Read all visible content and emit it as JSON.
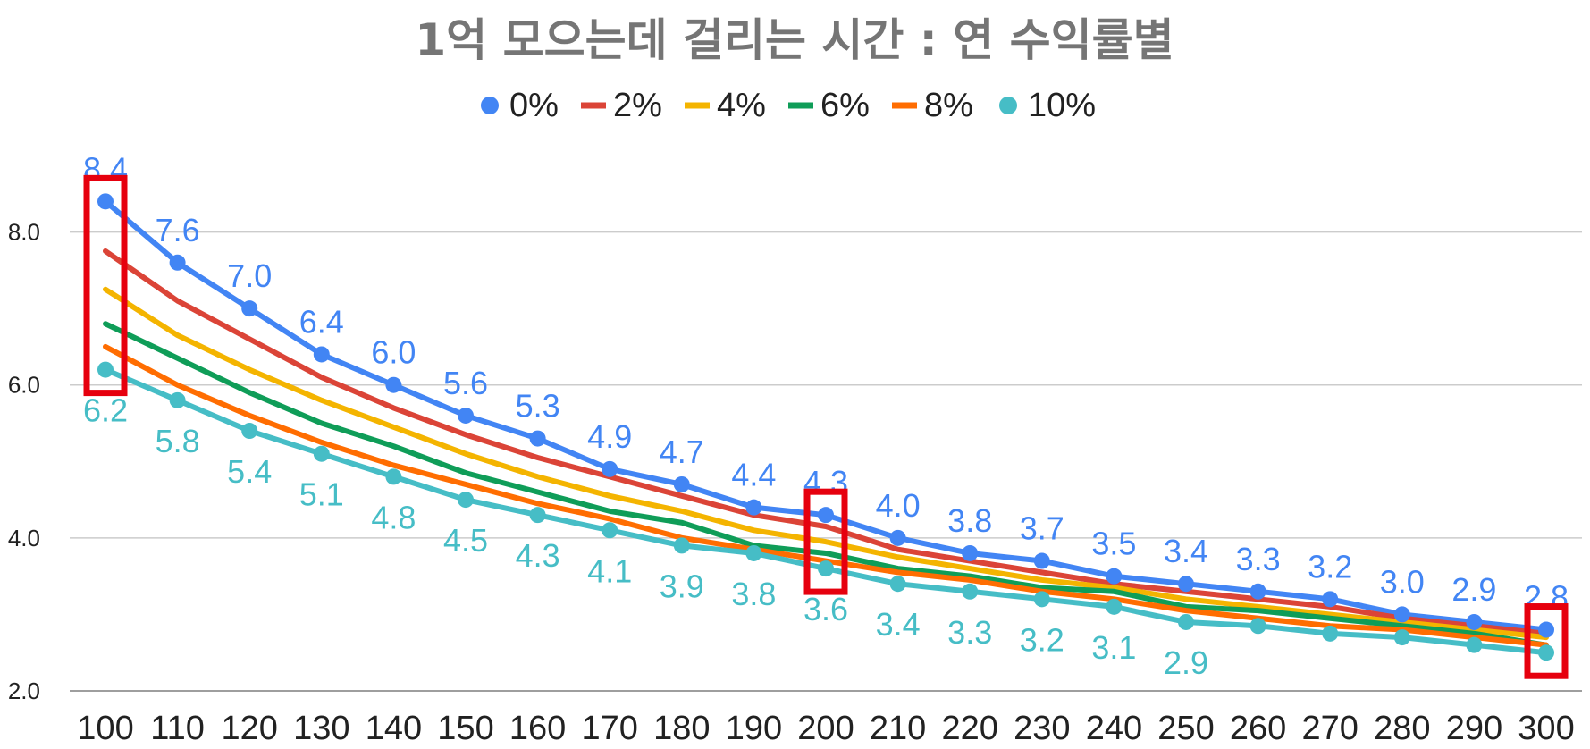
{
  "chart_data": {
    "type": "line",
    "title": "1억 모으는데 걸리는 시간 : 연 수익률별",
    "xlabel": "",
    "ylabel": "",
    "categories": [
      "100",
      "110",
      "120",
      "130",
      "140",
      "150",
      "160",
      "170",
      "180",
      "190",
      "200",
      "210",
      "220",
      "230",
      "240",
      "250",
      "260",
      "270",
      "280",
      "290",
      "300"
    ],
    "ylim": [
      2.0,
      9.0
    ],
    "yticks": [
      "2.0",
      "4.0",
      "6.0",
      "8.0"
    ],
    "grid": true,
    "legend_position": "top",
    "series": [
      {
        "name": "0%",
        "color": "#4285f4",
        "markers": true,
        "labels_above": true,
        "values": [
          8.4,
          7.6,
          7.0,
          6.4,
          6.0,
          5.6,
          5.3,
          4.9,
          4.7,
          4.4,
          4.3,
          4.0,
          3.8,
          3.7,
          3.5,
          3.4,
          3.3,
          3.2,
          3.0,
          2.9,
          2.8
        ],
        "value_labels": [
          "8.4",
          "7.6",
          "7.0",
          "6.4",
          "6.0",
          "5.6",
          "5.3",
          "4.9",
          "4.7",
          "4.4",
          "4.3",
          "4.0",
          "3.8",
          "3.7",
          "3.5",
          "3.4",
          "3.3",
          "3.2",
          "3.0",
          "2.9",
          "2.8"
        ]
      },
      {
        "name": "2%",
        "color": "#db4437",
        "markers": false,
        "values": [
          7.75,
          7.1,
          6.6,
          6.1,
          5.7,
          5.35,
          5.05,
          4.8,
          4.55,
          4.3,
          4.15,
          3.85,
          3.7,
          3.55,
          3.4,
          3.3,
          3.2,
          3.1,
          2.95,
          2.85,
          2.75
        ]
      },
      {
        "name": "4%",
        "color": "#f4b400",
        "markers": false,
        "values": [
          7.25,
          6.65,
          6.2,
          5.8,
          5.45,
          5.1,
          4.8,
          4.55,
          4.35,
          4.1,
          3.95,
          3.75,
          3.6,
          3.45,
          3.35,
          3.2,
          3.1,
          3.0,
          2.9,
          2.8,
          2.7
        ]
      },
      {
        "name": "6%",
        "color": "#0f9d58",
        "markers": false,
        "values": [
          6.8,
          6.35,
          5.9,
          5.5,
          5.2,
          4.85,
          4.6,
          4.35,
          4.2,
          3.9,
          3.8,
          3.6,
          3.5,
          3.35,
          3.3,
          3.1,
          3.05,
          2.95,
          2.85,
          2.75,
          2.6
        ]
      },
      {
        "name": "8%",
        "color": "#ff6d01",
        "markers": false,
        "values": [
          6.5,
          6.0,
          5.6,
          5.25,
          4.95,
          4.7,
          4.45,
          4.25,
          4.0,
          3.85,
          3.7,
          3.55,
          3.45,
          3.3,
          3.2,
          3.05,
          2.95,
          2.85,
          2.8,
          2.7,
          2.6
        ]
      },
      {
        "name": "10%",
        "color": "#46bdc6",
        "markers": true,
        "labels_above": false,
        "values": [
          6.2,
          5.8,
          5.4,
          5.1,
          4.8,
          4.5,
          4.3,
          4.1,
          3.9,
          3.8,
          3.6,
          3.4,
          3.3,
          3.2,
          3.1,
          2.9,
          2.85,
          2.75,
          2.7,
          2.6,
          2.5
        ],
        "value_labels": [
          "6.2",
          "5.8",
          "5.4",
          "5.1",
          "4.8",
          "4.5",
          "4.3",
          "4.1",
          "3.9",
          "3.8",
          "3.6",
          "3.4",
          "3.3",
          "3.2",
          "3.1",
          "2.9",
          "",
          "",
          "",
          "",
          ""
        ]
      }
    ],
    "highlight_boxes": [
      {
        "category": "100",
        "color": "#e6000e"
      },
      {
        "category": "200",
        "color": "#e6000e"
      },
      {
        "category": "300",
        "color": "#e6000e"
      }
    ]
  }
}
